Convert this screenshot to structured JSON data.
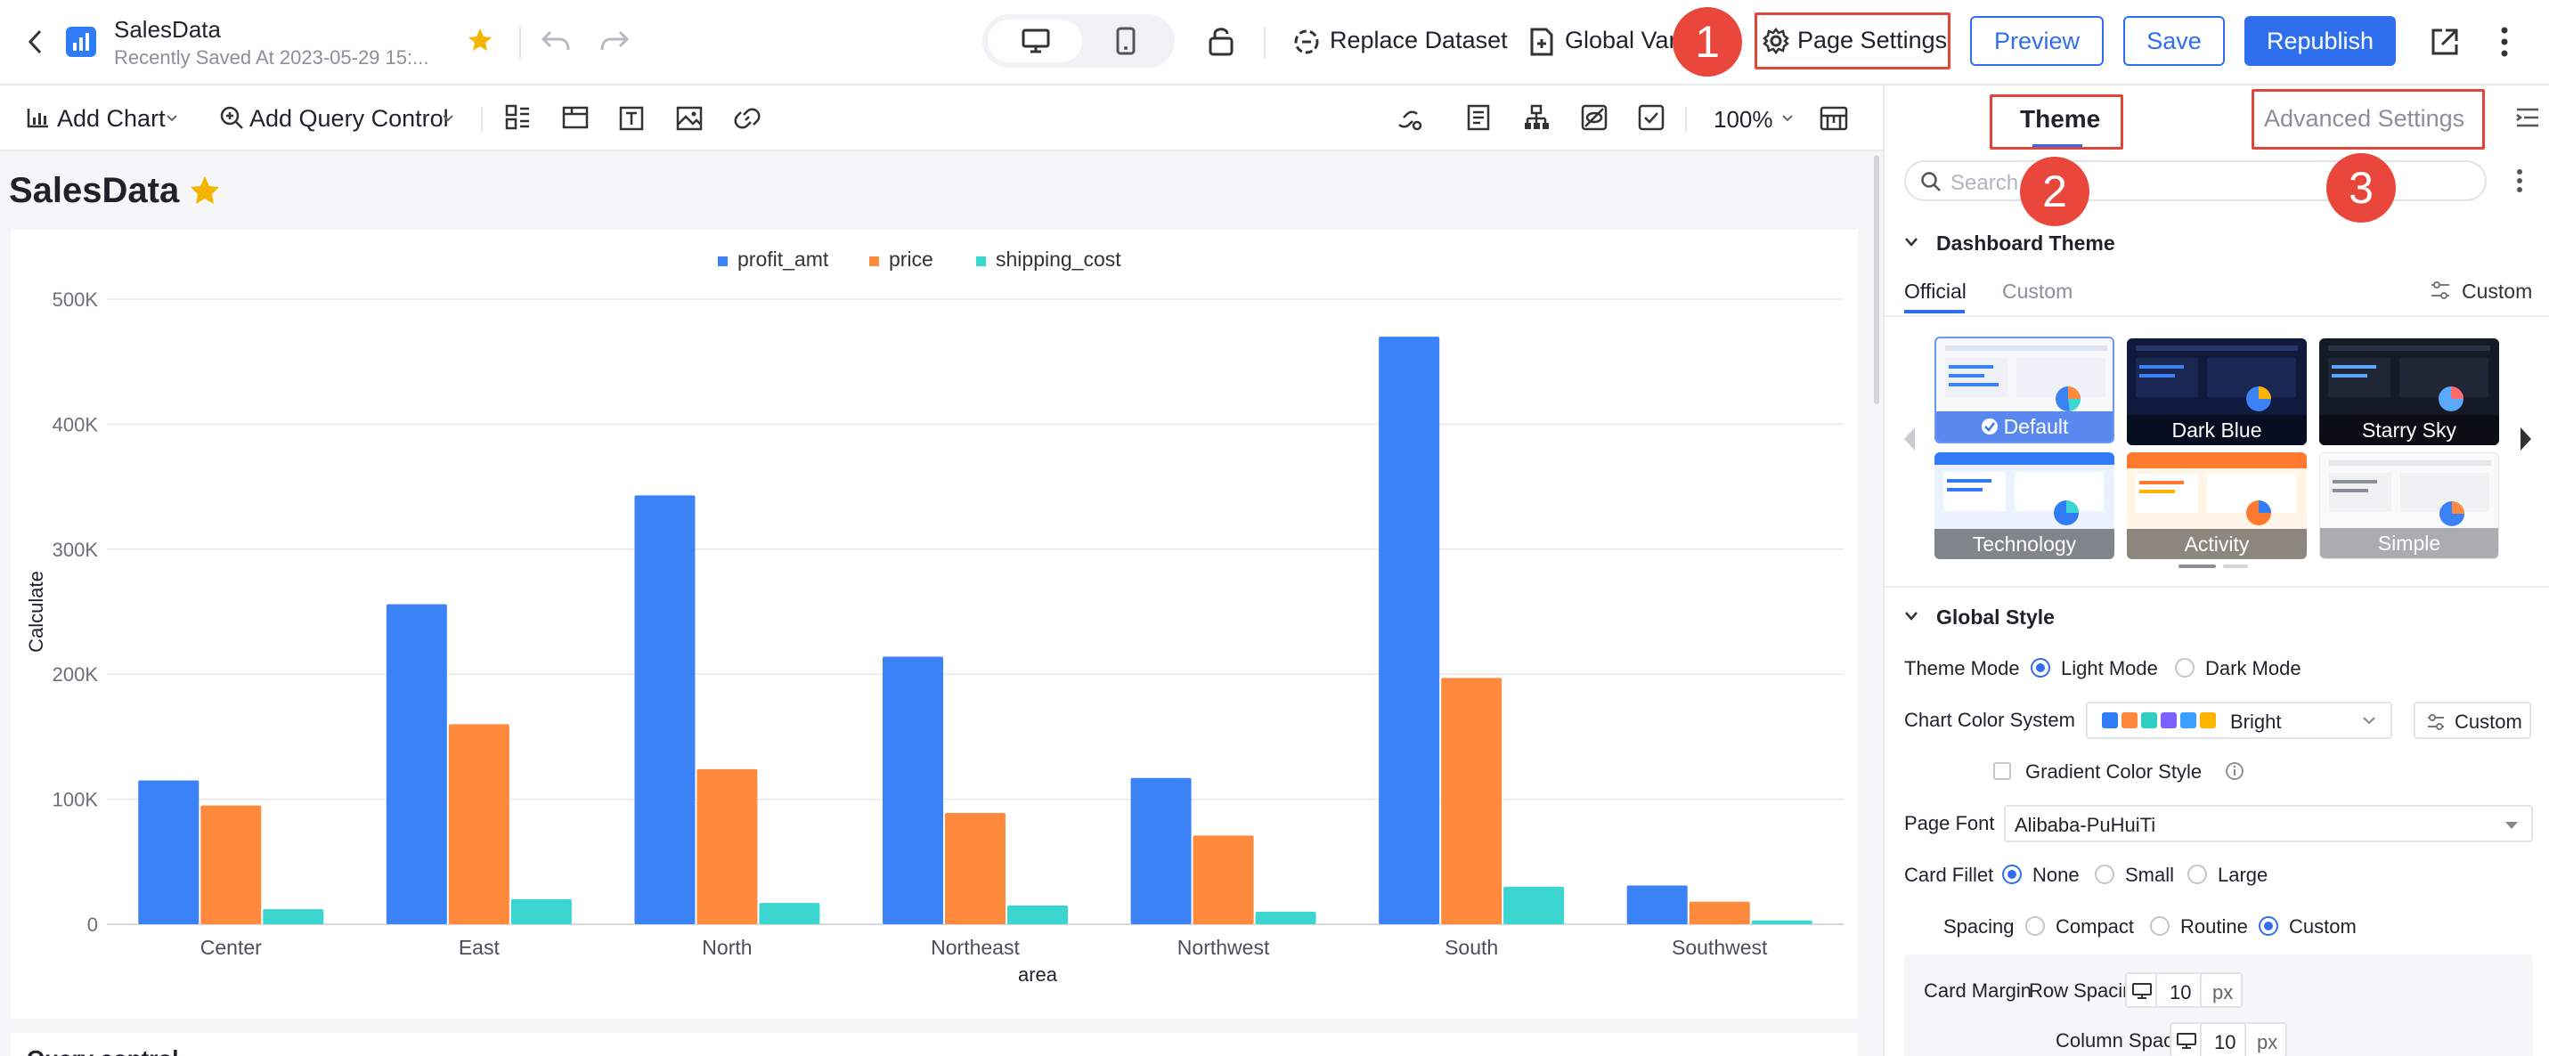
{
  "header": {
    "title": "SalesData",
    "saved": "Recently Saved At 2023-05-29 15:...",
    "replace_dataset": "Replace Dataset",
    "global_var": "Global Vari",
    "page_settings": "Page Settings",
    "preview": "Preview",
    "save": "Save",
    "republish": "Republish"
  },
  "toolbar": {
    "add_chart": "Add Chart",
    "add_query_control": "Add Query Control",
    "zoom": "100%"
  },
  "dashboard": {
    "title": "SalesData",
    "next_section": "Query control"
  },
  "chart_data": {
    "type": "bar",
    "categories": [
      "Center",
      "East",
      "North",
      "Northeast",
      "Northwest",
      "South",
      "Southwest"
    ],
    "series": [
      {
        "name": "profit_amt",
        "color": "#3b82f6",
        "values": [
          115000,
          256000,
          343000,
          214000,
          117000,
          470000,
          31000
        ]
      },
      {
        "name": "price",
        "color": "#ff8a3d",
        "values": [
          95000,
          160000,
          124000,
          89000,
          71000,
          197000,
          18000
        ]
      },
      {
        "name": "shipping_cost",
        "color": "#3ad6cf",
        "values": [
          12000,
          20000,
          17000,
          15000,
          10000,
          30000,
          3000
        ]
      }
    ],
    "ylim": [
      0,
      500000
    ],
    "yticks": [
      "0",
      "100K",
      "200K",
      "300K",
      "400K",
      "500K"
    ],
    "xlabel": "area",
    "ylabel": "Calculate",
    "legend": "top-center",
    "grid": true
  },
  "panel": {
    "tab_theme": "Theme",
    "tab_advanced": "Advanced Settings",
    "search_placeholder": "Search",
    "dashboard_theme": "Dashboard Theme",
    "official": "Official",
    "custom_tab": "Custom",
    "custom_link": "Custom",
    "themes": [
      "Default",
      "Dark Blue",
      "Starry Sky",
      "Technology",
      "Activity",
      "Simple"
    ],
    "global_style": "Global Style",
    "theme_mode_label": "Theme Mode",
    "light_mode": "Light Mode",
    "dark_mode": "Dark Mode",
    "color_system_label": "Chart Color System",
    "color_system_value": "Bright",
    "color_custom": "Custom",
    "palette": [
      "#2f7cf6",
      "#ff8a3d",
      "#2fcfc4",
      "#7b61ff",
      "#3aa0ff",
      "#ffb400"
    ],
    "gradient_label": "Gradient Color Style",
    "page_font_label": "Page Font",
    "page_font_value": "Alibaba-PuHuiTi",
    "card_fillet_label": "Card Fillet",
    "fillet_options": [
      "None",
      "Small",
      "Large"
    ],
    "spacing_label": "Spacing",
    "spacing_options": [
      "Compact",
      "Routine",
      "Custom"
    ],
    "card_margin_label": "Card Margin",
    "row_spacing_label": "Row Spacing",
    "row_spacing_value": "10",
    "column_spacing_label": "Column Spacing",
    "column_spacing_value": "10",
    "px_unit": "px"
  },
  "annotations": [
    "1",
    "2",
    "3"
  ]
}
